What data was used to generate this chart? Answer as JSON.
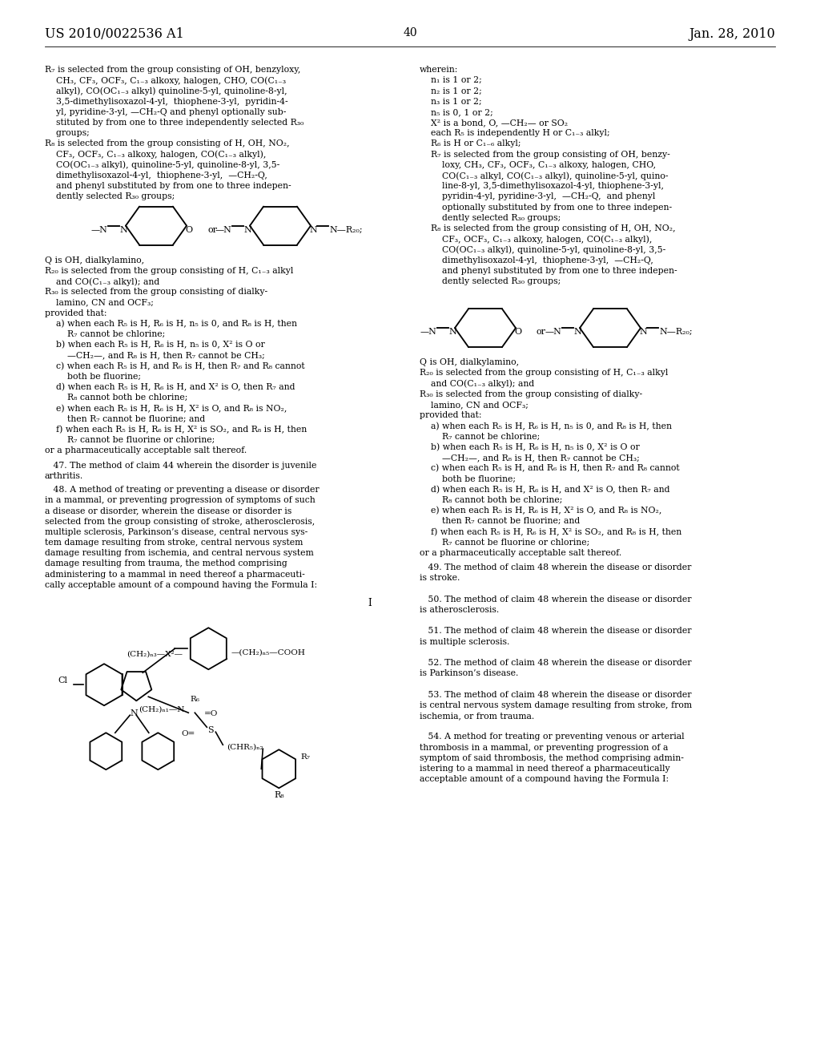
{
  "background_color": "#ffffff",
  "header_left": "US 2010/0022536 A1",
  "header_right": "Jan. 28, 2010",
  "page_number": "40"
}
